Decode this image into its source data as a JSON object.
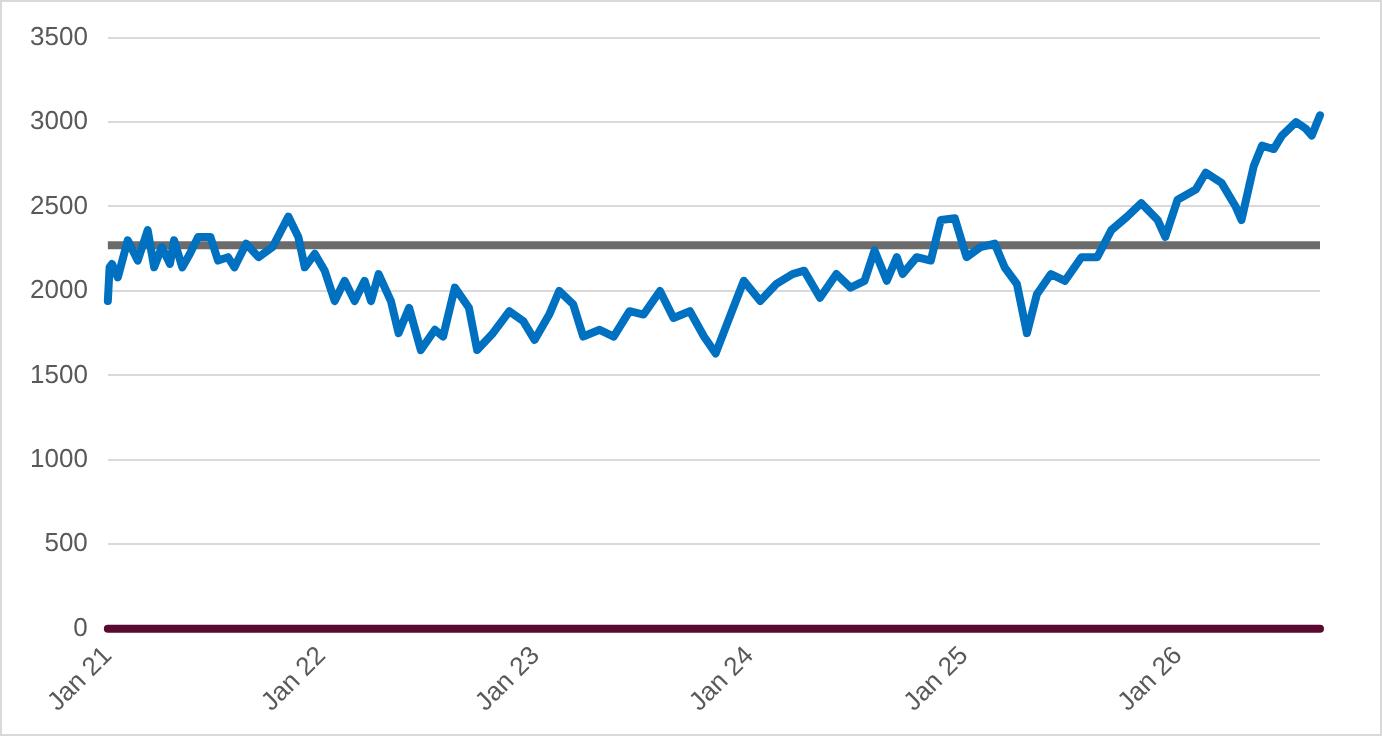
{
  "chart_data": {
    "type": "line",
    "x": [
      "2021-01-01",
      "2021-01-04",
      "2021-01-08",
      "2021-01-18",
      "2021-02-04",
      "2021-02-21",
      "2021-03-10",
      "2021-03-21",
      "2021-04-03",
      "2021-04-17",
      "2021-04-24",
      "2021-05-08",
      "2021-05-21",
      "2021-06-04",
      "2021-06-25",
      "2021-07-08",
      "2021-07-25",
      "2021-08-05",
      "2021-08-25",
      "2021-09-15",
      "2021-10-09",
      "2021-11-05",
      "2021-11-22",
      "2021-12-03",
      "2021-12-20",
      "2022-01-06",
      "2022-01-23",
      "2022-02-09",
      "2022-02-26",
      "2022-03-15",
      "2022-03-26",
      "2022-04-08",
      "2022-04-29",
      "2022-05-12",
      "2022-05-30",
      "2022-06-19",
      "2022-07-13",
      "2022-07-27",
      "2022-08-16",
      "2022-09-09",
      "2022-09-23",
      "2022-10-20",
      "2022-11-17",
      "2022-12-11",
      "2022-12-30",
      "2023-01-24",
      "2023-02-10",
      "2023-03-06",
      "2023-03-23",
      "2023-04-20",
      "2023-05-14",
      "2023-06-10",
      "2023-07-04",
      "2023-08-01",
      "2023-08-24",
      "2023-09-21",
      "2023-10-15",
      "2023-11-04",
      "2023-11-25",
      "2023-12-22",
      "2024-01-19",
      "2024-02-15",
      "2024-03-14",
      "2024-04-03",
      "2024-04-30",
      "2024-05-28",
      "2024-06-21",
      "2024-07-15",
      "2024-08-01",
      "2024-08-22",
      "2024-09-08",
      "2024-09-18",
      "2024-10-12",
      "2024-11-05",
      "2024-11-22",
      "2024-12-16",
      "2025-01-05",
      "2025-01-29",
      "2025-02-22",
      "2025-03-11",
      "2025-04-01",
      "2025-04-18",
      "2025-05-05",
      "2025-05-29",
      "2025-06-22",
      "2025-07-20",
      "2025-08-16",
      "2025-09-09",
      "2025-10-06",
      "2025-10-30",
      "2025-11-27",
      "2025-12-10",
      "2025-12-31",
      "2026-01-31",
      "2026-02-17",
      "2026-03-16",
      "2026-04-09",
      "2026-04-19",
      "2026-05-10",
      "2026-05-24",
      "2026-06-13",
      "2026-06-27",
      "2026-07-21",
      "2026-08-07",
      "2026-08-17",
      "2026-08-31"
    ],
    "series": [
      {
        "color": "#0070c0",
        "values": [
          1940,
          2140,
          2160,
          2080,
          2300,
          2180,
          2360,
          2140,
          2260,
          2160,
          2300,
          2140,
          2220,
          2320,
          2320,
          2180,
          2200,
          2140,
          2280,
          2200,
          2260,
          2440,
          2320,
          2140,
          2220,
          2120,
          1940,
          2060,
          1940,
          2060,
          1940,
          2100,
          1940,
          1750,
          1900,
          1650,
          1770,
          1730,
          2020,
          1900,
          1650,
          1750,
          1880,
          1820,
          1710,
          1860,
          2000,
          1920,
          1730,
          1770,
          1730,
          1880,
          1860,
          2000,
          1840,
          1880,
          1730,
          1630,
          1820,
          2060,
          1940,
          2040,
          2100,
          2120,
          1960,
          2100,
          2020,
          2060,
          2240,
          2060,
          2200,
          2100,
          2200,
          2180,
          2420,
          2430,
          2200,
          2260,
          2280,
          2140,
          2040,
          1750,
          1980,
          2100,
          2060,
          2200,
          2200,
          2360,
          2440,
          2520,
          2420,
          2320,
          2540,
          2600,
          2700,
          2640,
          2500,
          2420,
          2740,
          2860,
          2840,
          2920,
          3000,
          2960,
          2920,
          3040
        ]
      },
      {
        "color": "#5a0a30",
        "x": [
          "2021-01-01",
          "2026-08-31"
        ],
        "values": [
          0,
          0
        ]
      }
    ],
    "xlim": [
      "2021-01-01",
      "2026-08-31"
    ],
    "xticks": [
      {
        "value": "2021-01-01",
        "label": "Jan 21"
      },
      {
        "value": "2022-01-01",
        "label": "Jan 22"
      },
      {
        "value": "2023-01-01",
        "label": "Jan 23"
      },
      {
        "value": "2024-01-01",
        "label": "Jan 24"
      },
      {
        "value": "2025-01-01",
        "label": "Jan 25"
      },
      {
        "value": "2026-01-01",
        "label": "Jan 26"
      }
    ],
    "ylim": [
      0,
      3500
    ],
    "yticks": [
      0,
      500,
      1000,
      1500,
      2000,
      2500,
      3000,
      3500
    ],
    "grid": "y",
    "legend": false,
    "marker": "none",
    "line_style": "solid",
    "ref_lines": [
      {
        "axis": "y",
        "value": 2270,
        "color": "#6b6b6b"
      }
    ]
  }
}
